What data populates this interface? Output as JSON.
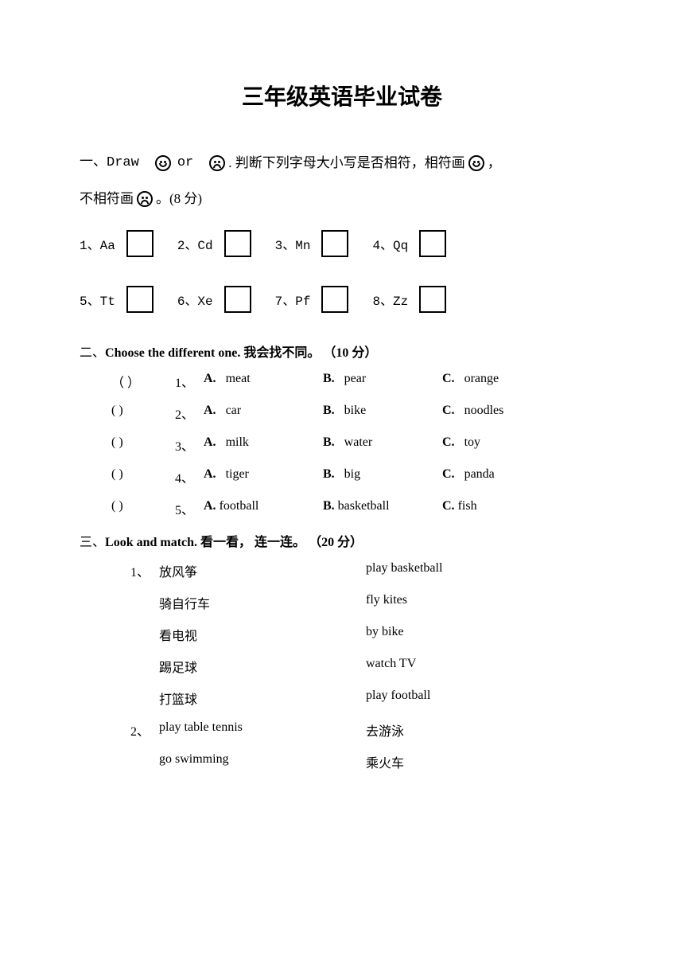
{
  "title": "三年级英语毕业试卷",
  "section1": {
    "prefix": "一、Draw",
    "or": "or",
    "instruction_part1": ". 判断下列字母大小写是否相符，相符画",
    "instruction_part2": "，",
    "line2_prefix": "不相符画",
    "line2_suffix": "。(8 分)",
    "items": [
      {
        "num": "1、",
        "letters": "Aa"
      },
      {
        "num": "2、",
        "letters": "Cd"
      },
      {
        "num": "3、",
        "letters": "Mn"
      },
      {
        "num": "4、",
        "letters": "Qq"
      },
      {
        "num": "5、",
        "letters": "Tt"
      },
      {
        "num": "6、",
        "letters": "Xe"
      },
      {
        "num": "7、",
        "letters": "Pf"
      },
      {
        "num": "8、",
        "letters": "Zz"
      }
    ]
  },
  "section2": {
    "header_prefix": "二、",
    "header_bold": "Choose the different one.",
    "header_cn": "我会找不同。",
    "header_points": "（10 分）",
    "rows": [
      {
        "paren": "（    ）",
        "num": "1、",
        "a_label": "A.",
        "a": "meat",
        "b_label": "B.",
        "b": "pear",
        "c_label": "C.",
        "c": "orange"
      },
      {
        "paren": "(     )",
        "num": "2、",
        "a_label": "A.",
        "a": "car",
        "b_label": "B.",
        "b": "bike",
        "c_label": "C.",
        "c": "noodles"
      },
      {
        "paren": "(     )",
        "num": "3、",
        "a_label": "A.",
        "a": "milk",
        "b_label": "B.",
        "b": "water",
        "c_label": "C.",
        "c": "toy"
      },
      {
        "paren": "(     )",
        "num": "4、",
        "a_label": "A.",
        "a": "tiger",
        "b_label": "B.",
        "b": "big",
        "c_label": "C.",
        "c": "panda"
      },
      {
        "paren": "(     )",
        "num": "5、",
        "a_label": "A.",
        "a": "football",
        "b_label": "B.",
        "b": "basketball",
        "c_label": "C.",
        "c": "fish"
      }
    ]
  },
  "section3": {
    "header_prefix": "三、",
    "header_bold": "Look and match.",
    "header_cn": "看一看， 连一连。",
    "header_points": "（20 分）",
    "group1": {
      "num": "1、",
      "rows": [
        {
          "left": "放风筝",
          "right": "play basketball"
        },
        {
          "left": "骑自行车",
          "right": "fly kites"
        },
        {
          "left": "看电视",
          "right": "by bike"
        },
        {
          "left": "踢足球",
          "right": "watch TV"
        },
        {
          "left": "打篮球",
          "right": "play football"
        }
      ]
    },
    "group2": {
      "num": "2、",
      "rows": [
        {
          "left": "play table tennis",
          "right": "去游泳"
        },
        {
          "left": "go swimming",
          "right": "乘火车"
        }
      ]
    }
  }
}
